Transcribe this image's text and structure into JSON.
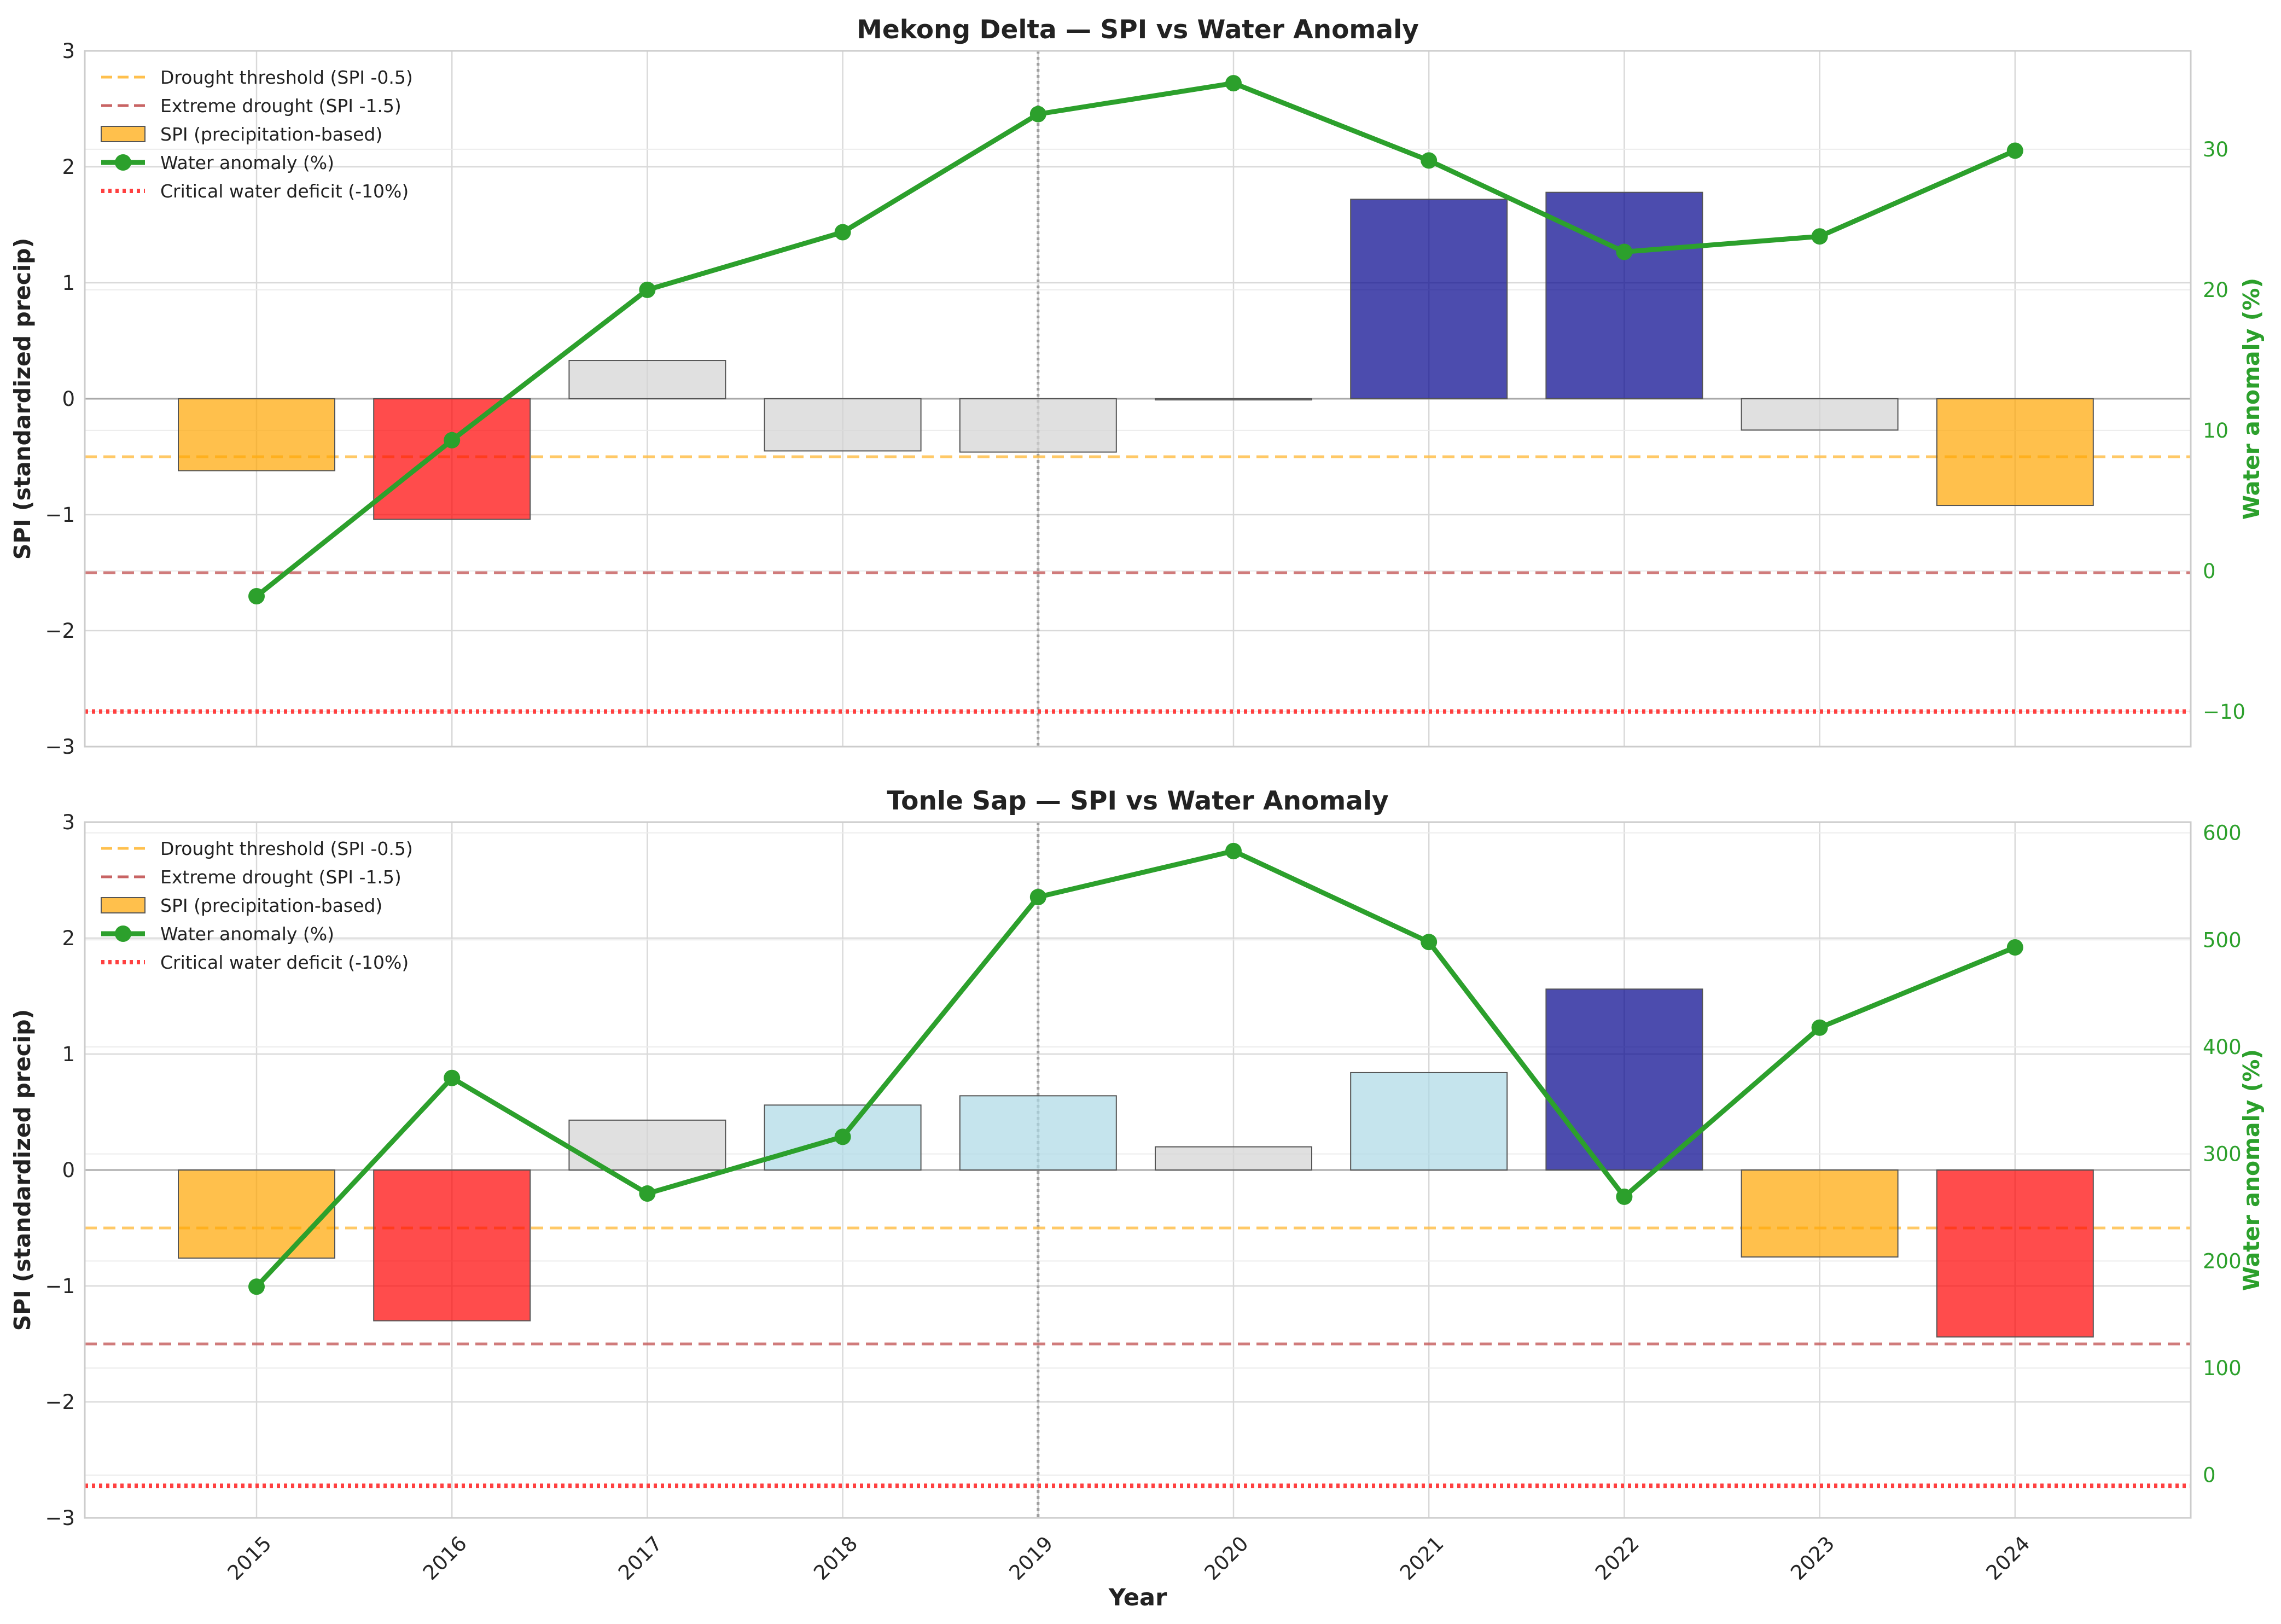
{
  "chart_data": [
    {
      "type": "bar",
      "title": "Mekong Delta — SPI vs Water Anomaly",
      "xlabel": "",
      "ylabel": "SPI (standardized precip)",
      "y2label": "Water anomaly (%)",
      "ylim": [
        -3,
        3
      ],
      "y2lim": [
        -12.5,
        37
      ],
      "yticks": [
        -3,
        -2,
        -1,
        0,
        1,
        2,
        3
      ],
      "y2ticks": [
        -10,
        0,
        10,
        20,
        30
      ],
      "categories": [
        "2015",
        "2016",
        "2017",
        "2018",
        "2019",
        "2020",
        "2021",
        "2022",
        "2023",
        "2024"
      ],
      "series": [
        {
          "name": "SPI (precipitation-based)",
          "kind": "bar",
          "values": [
            -0.62,
            -1.04,
            0.33,
            -0.45,
            -0.46,
            -0.01,
            1.72,
            1.78,
            -0.27,
            -0.92
          ],
          "colors": [
            "#ffa500",
            "#ff0000",
            "#d3d3d3",
            "#d3d3d3",
            "#d3d3d3",
            "#d3d3d3",
            "#00008b",
            "#00008b",
            "#d3d3d3",
            "#ffa500"
          ]
        },
        {
          "name": "Water anomaly (%)",
          "kind": "line",
          "axis": "right",
          "color": "#2ca02c",
          "values": [
            -1.8,
            9.3,
            20.0,
            24.1,
            32.5,
            34.7,
            29.2,
            22.7,
            23.8,
            29.9
          ]
        }
      ],
      "reference_lines": [
        {
          "name": "Drought threshold (SPI -0.5)",
          "axis": "left",
          "value": -0.5,
          "color": "#ffc04d",
          "style": "dashed"
        },
        {
          "name": "Extreme drought (SPI -1.5)",
          "axis": "left",
          "value": -1.5,
          "color": "#c86464",
          "style": "dashed"
        },
        {
          "name": "Critical water deficit (-10%)",
          "axis": "right",
          "value": -10,
          "color": "#ff4040",
          "style": "dotted"
        }
      ],
      "vertical_marker": "2019",
      "legend": {
        "placement": "upper-left",
        "entries": [
          "Drought threshold (SPI -0.5)",
          "Extreme drought (SPI -1.5)",
          "SPI (precipitation-based)",
          "Water anomaly (%)",
          "Critical water deficit (-10%)"
        ]
      },
      "grid": true
    },
    {
      "type": "bar",
      "title": "Tonle Sap — SPI vs Water Anomaly",
      "xlabel": "Year",
      "ylabel": "SPI (standardized precip)",
      "y2label": "Water anomaly (%)",
      "ylim": [
        -3,
        3
      ],
      "y2lim": [
        -40,
        610
      ],
      "yticks": [
        -3,
        -2,
        -1,
        0,
        1,
        2,
        3
      ],
      "y2ticks": [
        0,
        100,
        200,
        300,
        400,
        500,
        600
      ],
      "categories": [
        "2015",
        "2016",
        "2017",
        "2018",
        "2019",
        "2020",
        "2021",
        "2022",
        "2023",
        "2024"
      ],
      "series": [
        {
          "name": "SPI (precipitation-based)",
          "kind": "bar",
          "values": [
            -0.76,
            -1.3,
            0.43,
            0.56,
            0.64,
            0.2,
            0.84,
            1.56,
            -0.75,
            -1.44
          ],
          "colors": [
            "#ffa500",
            "#ff0000",
            "#d3d3d3",
            "#add8e6",
            "#add8e6",
            "#d3d3d3",
            "#add8e6",
            "#00008b",
            "#ffa500",
            "#ff0000"
          ]
        },
        {
          "name": "Water anomaly (%)",
          "kind": "line",
          "axis": "right",
          "color": "#2ca02c",
          "values": [
            176,
            371,
            263,
            316,
            540,
            583,
            498,
            260,
            418,
            493
          ]
        }
      ],
      "reference_lines": [
        {
          "name": "Drought threshold (SPI -0.5)",
          "axis": "left",
          "value": -0.5,
          "color": "#ffc04d",
          "style": "dashed"
        },
        {
          "name": "Extreme drought (SPI -1.5)",
          "axis": "left",
          "value": -1.5,
          "color": "#c86464",
          "style": "dashed"
        },
        {
          "name": "Critical water deficit (-10%)",
          "axis": "right",
          "value": -10,
          "color": "#ff4040",
          "style": "dotted"
        }
      ],
      "vertical_marker": "2019",
      "legend": {
        "placement": "upper-left",
        "entries": [
          "Drought threshold (SPI -0.5)",
          "Extreme drought (SPI -1.5)",
          "SPI (precipitation-based)",
          "Water anomaly (%)",
          "Critical water deficit (-10%)"
        ]
      },
      "grid": true
    }
  ]
}
